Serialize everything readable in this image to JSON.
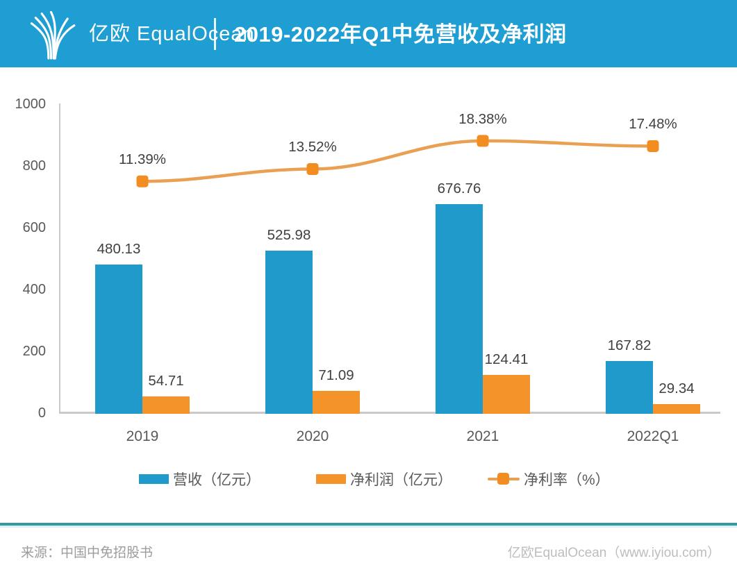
{
  "header": {
    "logo_text": "亿欧 EqualOcean",
    "title": "2019-2022年Q1中免营收及净利润"
  },
  "chart_data": {
    "type": "bar",
    "subtype": "combo-bar-line",
    "title": "2019-2022年Q1中免营收及净利润",
    "categories": [
      "2019",
      "2020",
      "2021",
      "2022Q1"
    ],
    "series": [
      {
        "name": "营收（亿元）",
        "type": "bar",
        "color": "#1F9ACB",
        "values": [
          480.13,
          525.98,
          676.76,
          167.82
        ],
        "labels": [
          "480.13",
          "525.98",
          "676.76",
          "167.82"
        ]
      },
      {
        "name": "净利润（亿元）",
        "type": "bar",
        "color": "#F3932A",
        "values": [
          54.71,
          71.09,
          124.41,
          29.34
        ],
        "labels": [
          "54.71",
          "71.09",
          "124.41",
          "29.34"
        ]
      },
      {
        "name": "净利率（%）",
        "type": "line",
        "color": "#E9A052",
        "marker_color": "#F28D21",
        "values": [
          11.39,
          13.52,
          18.38,
          17.48
        ],
        "labels": [
          "11.39%",
          "13.52%",
          "18.38%",
          "17.48%"
        ]
      }
    ],
    "y_ticks": [
      0,
      200,
      400,
      600,
      800,
      1000
    ],
    "ylim": [
      0,
      1000
    ],
    "grid": false,
    "legend_position": "bottom",
    "axis_color": "#c9c9c9"
  },
  "footer": {
    "source": "来源：中国中免招股书",
    "branding": "亿欧EqualOcean（www.iyiou.com）"
  }
}
